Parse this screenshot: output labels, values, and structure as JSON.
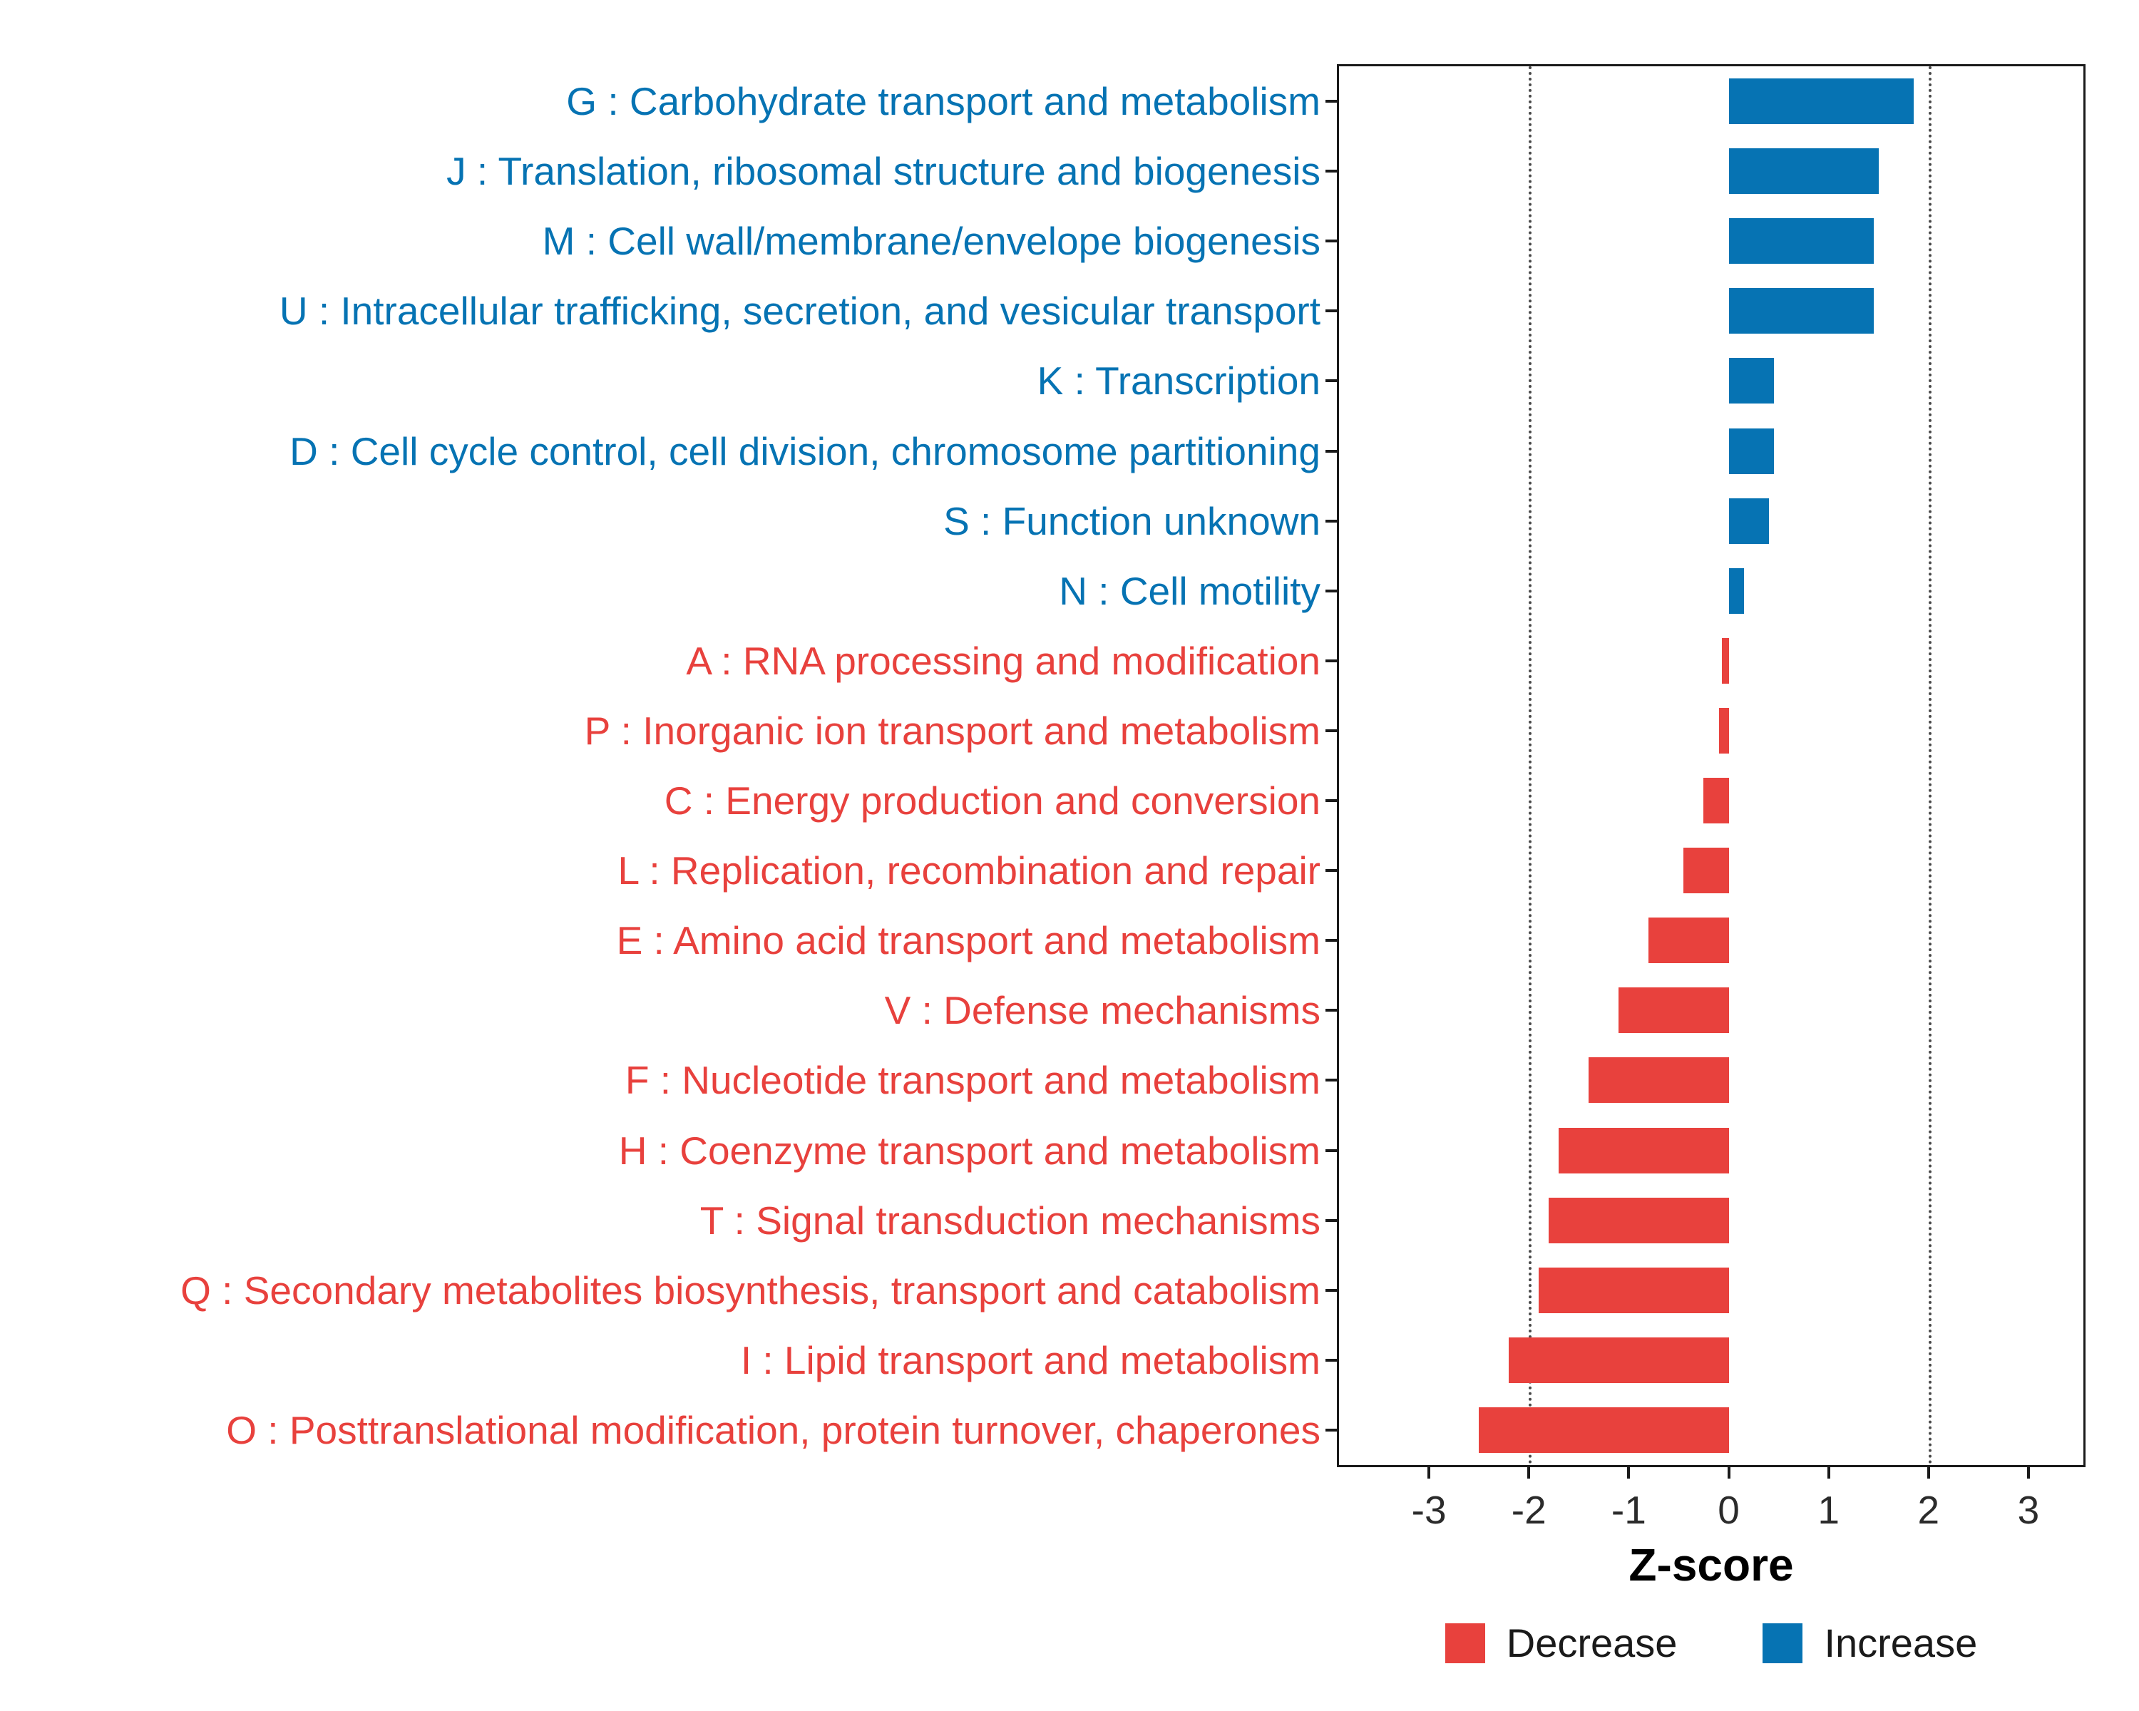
{
  "chart_data": {
    "type": "bar",
    "orientation": "horizontal",
    "title": "",
    "xlabel": "Z-score",
    "ylabel": "",
    "x_ticks": [
      -3,
      -2,
      -1,
      0,
      1,
      2,
      3
    ],
    "x_domain": [
      -3.9,
      3.55
    ],
    "gridlines_x": [
      -2,
      2
    ],
    "grid": "dotted vertical lines at -2 and 2 only",
    "legend_position": "bottom",
    "colors": {
      "Increase": "#0673B3",
      "Decrease": "#E8413D"
    },
    "categories": [
      {
        "label": "G : Carbohydrate transport and metabolism",
        "value": 1.85,
        "direction": "Increase"
      },
      {
        "label": "J : Translation, ribosomal structure and biogenesis",
        "value": 1.5,
        "direction": "Increase"
      },
      {
        "label": "M : Cell wall/membrane/envelope biogenesis",
        "value": 1.45,
        "direction": "Increase"
      },
      {
        "label": "U : Intracellular trafficking, secretion, and vesicular transport",
        "value": 1.45,
        "direction": "Increase"
      },
      {
        "label": "K : Transcription",
        "value": 0.45,
        "direction": "Increase"
      },
      {
        "label": "D : Cell cycle control, cell division, chromosome partitioning",
        "value": 0.45,
        "direction": "Increase"
      },
      {
        "label": "S : Function unknown",
        "value": 0.4,
        "direction": "Increase"
      },
      {
        "label": "N : Cell motility",
        "value": 0.15,
        "direction": "Increase"
      },
      {
        "label": "A : RNA processing and modification",
        "value": -0.07,
        "direction": "Decrease"
      },
      {
        "label": "P : Inorganic ion transport and metabolism",
        "value": -0.1,
        "direction": "Decrease"
      },
      {
        "label": "C : Energy production and conversion",
        "value": -0.25,
        "direction": "Decrease"
      },
      {
        "label": "L : Replication, recombination and repair",
        "value": -0.45,
        "direction": "Decrease"
      },
      {
        "label": "E : Amino acid transport and metabolism",
        "value": -0.8,
        "direction": "Decrease"
      },
      {
        "label": "V : Defense mechanisms",
        "value": -1.1,
        "direction": "Decrease"
      },
      {
        "label": "F : Nucleotide transport and metabolism",
        "value": -1.4,
        "direction": "Decrease"
      },
      {
        "label": "H : Coenzyme transport and metabolism",
        "value": -1.7,
        "direction": "Decrease"
      },
      {
        "label": "T : Signal transduction mechanisms",
        "value": -1.8,
        "direction": "Decrease"
      },
      {
        "label": "Q : Secondary metabolites biosynthesis, transport and catabolism",
        "value": -1.9,
        "direction": "Decrease"
      },
      {
        "label": "I : Lipid transport and metabolism",
        "value": -2.2,
        "direction": "Decrease"
      },
      {
        "label": "O : Posttranslational modification, protein turnover, chaperones",
        "value": -2.5,
        "direction": "Decrease"
      }
    ],
    "legend": [
      {
        "label": "Decrease",
        "color": "#E8413D"
      },
      {
        "label": "Increase",
        "color": "#0673B3"
      }
    ]
  }
}
